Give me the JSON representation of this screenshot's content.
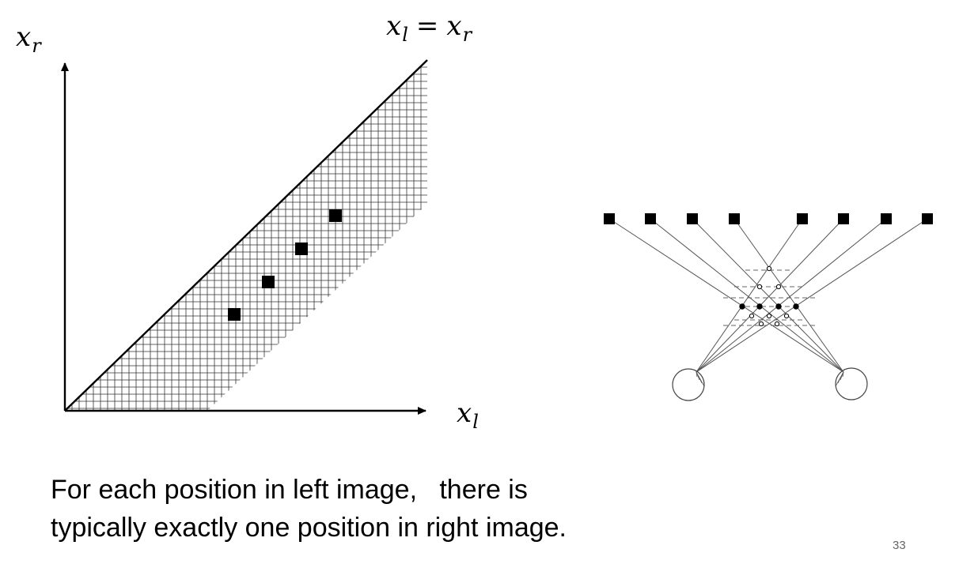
{
  "axes": {
    "y_label": {
      "var": "x",
      "sub": "r"
    },
    "x_label": {
      "var": "x",
      "sub": "l"
    }
  },
  "diagonal_label": {
    "left": {
      "var": "x",
      "sub": "l"
    },
    "eq": "=",
    "right": {
      "var": "x",
      "sub": "r"
    }
  },
  "caption": {
    "line1": "For each position in left image,   there is",
    "line2": "typically exactly one position in right image."
  },
  "slide_number": "33",
  "matches": {
    "count": 4
  },
  "network": {
    "top_squares": 8
  }
}
